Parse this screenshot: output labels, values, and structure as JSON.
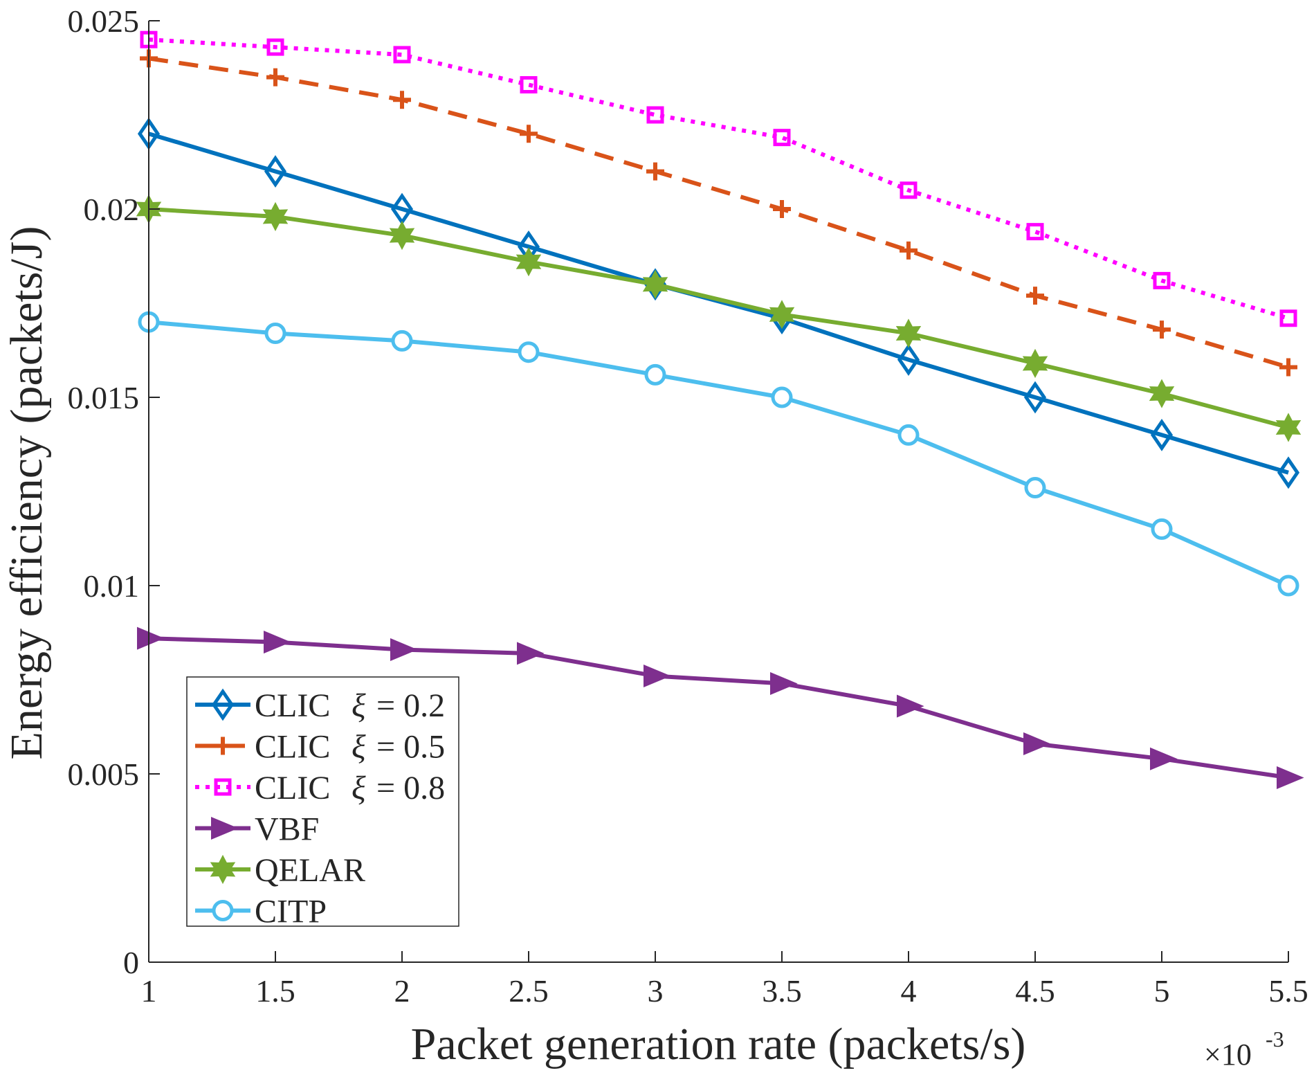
{
  "chart_data": {
    "type": "line",
    "title": "",
    "xlabel": "Packet generation rate (packets/s)",
    "ylabel": "Energy efficiency (packets/J)",
    "x_scale_label": "×10",
    "x_scale_exponent": "-3",
    "x": [
      1,
      1.5,
      2,
      2.5,
      3,
      3.5,
      4,
      4.5,
      5,
      5.5
    ],
    "x_tick_labels": [
      "1",
      "1.5",
      "2",
      "2.5",
      "3",
      "3.5",
      "4",
      "4.5",
      "5",
      "5.5"
    ],
    "xlim": [
      1,
      5.5
    ],
    "ylim": [
      0,
      0.025
    ],
    "y_ticks": [
      0,
      0.005,
      0.01,
      0.015,
      0.02,
      0.025
    ],
    "y_tick_labels": [
      "0",
      "0.005",
      "0.01",
      "0.015",
      "0.02",
      "0.025"
    ],
    "grid": false,
    "legend_position": "bottom-left",
    "series": [
      {
        "name": "CLIC",
        "xi_symbol": "ξ",
        "xi_text": "= 0.2",
        "color": "#0072BD",
        "line_style": "solid",
        "marker": "diamond",
        "values": [
          0.022,
          0.021,
          0.02,
          0.019,
          0.018,
          0.0171,
          0.016,
          0.015,
          0.014,
          0.013
        ]
      },
      {
        "name": "CLIC",
        "xi_symbol": "ξ",
        "xi_text": "= 0.5",
        "color": "#D95319",
        "line_style": "dashed",
        "marker": "plus",
        "values": [
          0.024,
          0.0235,
          0.0229,
          0.022,
          0.021,
          0.02,
          0.0189,
          0.0177,
          0.0168,
          0.0158
        ]
      },
      {
        "name": "CLIC",
        "xi_symbol": "ξ",
        "xi_text": "= 0.8",
        "color": "#FF00FF",
        "line_style": "dotted",
        "marker": "square",
        "values": [
          0.0245,
          0.0243,
          0.0241,
          0.0233,
          0.0225,
          0.0219,
          0.0205,
          0.0194,
          0.0181,
          0.0171
        ]
      },
      {
        "name": "VBF",
        "xi_symbol": "",
        "xi_text": "",
        "color": "#7E2F8E",
        "line_style": "solid",
        "marker": "triangle-right",
        "values": [
          0.0086,
          0.0085,
          0.0083,
          0.0082,
          0.0076,
          0.0074,
          0.0068,
          0.0058,
          0.0054,
          0.0049
        ]
      },
      {
        "name": "QELAR",
        "xi_symbol": "",
        "xi_text": "",
        "color": "#77AC30",
        "line_style": "solid",
        "marker": "hexagram",
        "values": [
          0.02,
          0.0198,
          0.0193,
          0.0186,
          0.018,
          0.0172,
          0.0167,
          0.0159,
          0.0151,
          0.0142
        ]
      },
      {
        "name": "CITP",
        "xi_symbol": "",
        "xi_text": "",
        "color": "#4DBEEE",
        "line_style": "solid",
        "marker": "circle",
        "values": [
          0.017,
          0.0167,
          0.0165,
          0.0162,
          0.0156,
          0.015,
          0.014,
          0.0126,
          0.0115,
          0.01
        ]
      }
    ]
  }
}
